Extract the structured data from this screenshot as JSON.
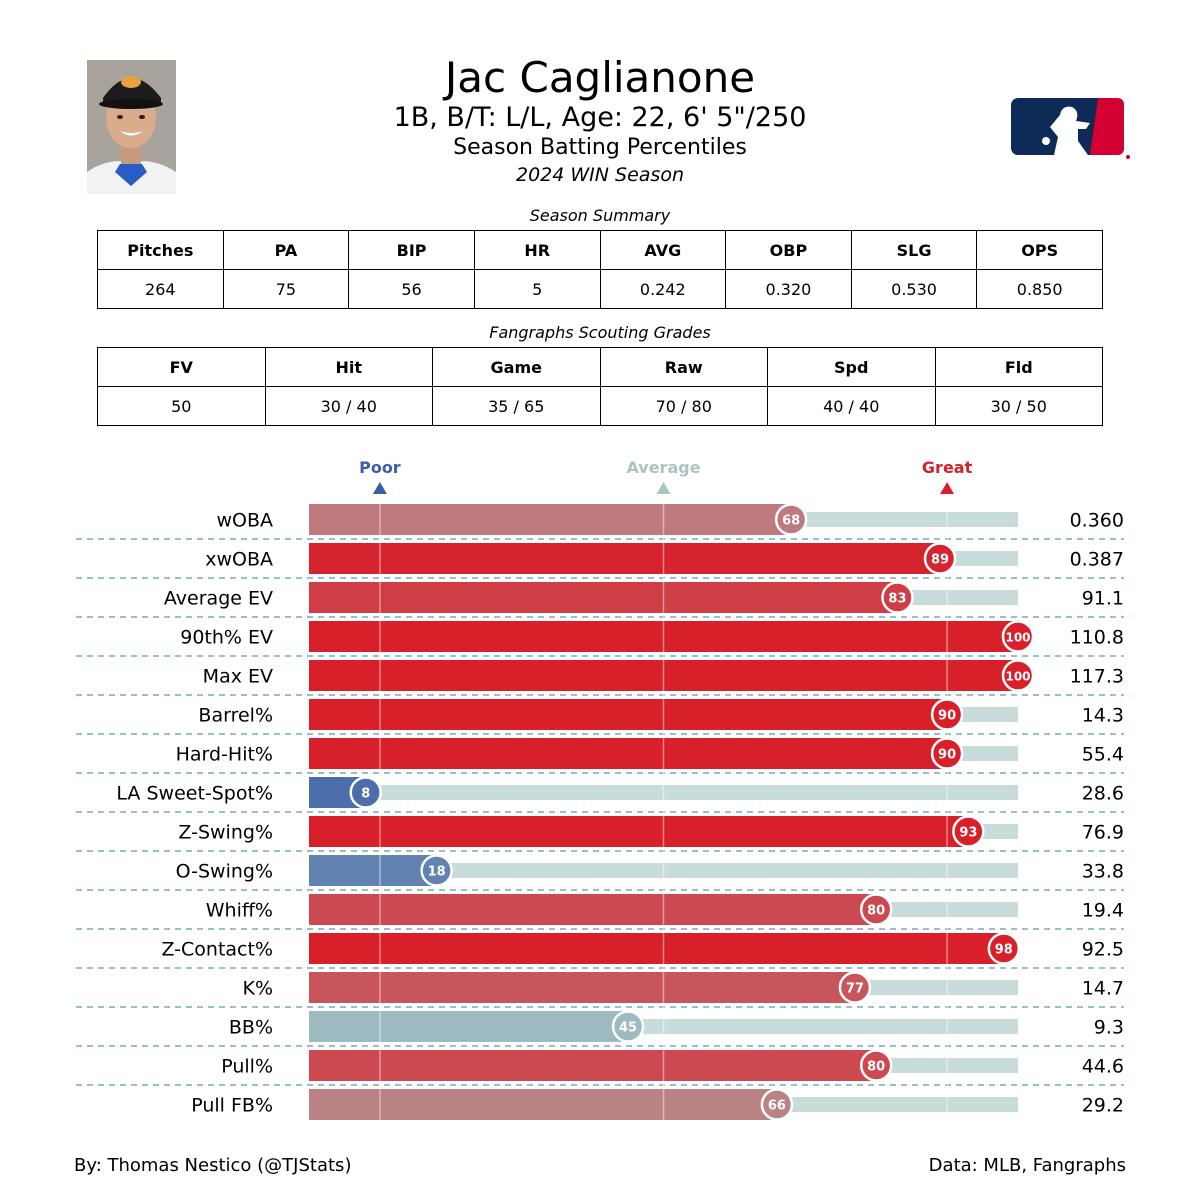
{
  "header": {
    "name": "Jac Caglianone",
    "bio": "1B, B/T: L/L, Age: 22, 6' 5\"/250",
    "subtitle": "Season Batting Percentiles",
    "season": "2024 WIN Season"
  },
  "summary": {
    "title": "Season Summary",
    "headers": [
      "Pitches",
      "PA",
      "BIP",
      "HR",
      "AVG",
      "OBP",
      "SLG",
      "OPS"
    ],
    "values": [
      "264",
      "75",
      "56",
      "5",
      "0.242",
      "0.320",
      "0.530",
      "0.850"
    ]
  },
  "grades": {
    "title": "Fangraphs Scouting Grades",
    "headers": [
      "FV",
      "Hit",
      "Game",
      "Raw",
      "Spd",
      "Fld"
    ],
    "values": [
      "50",
      "30 / 40",
      "35 / 65",
      "70 / 80",
      "40 / 40",
      "30 / 50"
    ]
  },
  "chart_data": {
    "type": "bar",
    "orientation": "horizontal",
    "markers": [
      {
        "label": "Poor",
        "value": 10,
        "color": "#3a5fa8"
      },
      {
        "label": "Average",
        "value": 50,
        "color": "#a9c4c4"
      },
      {
        "label": "Great",
        "value": 90,
        "color": "#d7202a"
      }
    ],
    "xlim": [
      0,
      100
    ],
    "categories": [
      "wOBA",
      "xwOBA",
      "Average EV",
      "90th% EV",
      "Max EV",
      "Barrel%",
      "Hard-Hit%",
      "LA Sweet-Spot%",
      "Z-Swing%",
      "O-Swing%",
      "Whiff%",
      "Z-Contact%",
      "K%",
      "BB%",
      "Pull%",
      "Pull FB%"
    ],
    "percentiles": [
      68,
      89,
      83,
      100,
      100,
      90,
      90,
      8,
      93,
      18,
      80,
      98,
      77,
      45,
      80,
      66
    ],
    "stat_values": [
      "0.360",
      "0.387",
      "91.1",
      "110.8",
      "117.3",
      "14.3",
      "55.4",
      "28.6",
      "76.9",
      "33.8",
      "19.4",
      "92.5",
      "14.7",
      "9.3",
      "44.6",
      "29.2"
    ],
    "colors": {
      "poor": "#3a5fa8",
      "average": "#a9c4c4",
      "great": "#d7202a",
      "track": "#c8dcdc"
    }
  },
  "footer": {
    "credit": "By: Thomas Nestico (@TJStats)",
    "source": "Data: MLB, Fangraphs"
  },
  "icons": {
    "player_photo": "player-headshot",
    "league_logo": "mlb-logo"
  }
}
